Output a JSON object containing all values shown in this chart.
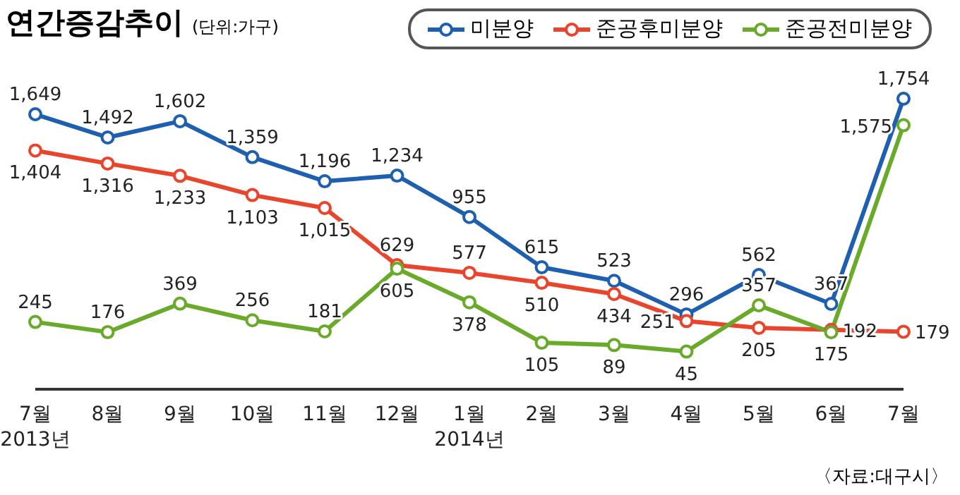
{
  "chart_data": {
    "type": "line",
    "title": "연간증감추이",
    "subtitle": "(단위:가구)",
    "categories": [
      "7월\n2013년",
      "8월",
      "9월",
      "10월",
      "11월",
      "12월",
      "1월\n2014년",
      "2월",
      "3월",
      "4월",
      "5월",
      "6월",
      "7월"
    ],
    "series": [
      {
        "name": "미분양",
        "color": "#1f5fb0",
        "values": [
          1649,
          1492,
          1602,
          1359,
          1196,
          1234,
          955,
          615,
          523,
          296,
          562,
          367,
          1754
        ],
        "value_labels": [
          "1,649",
          "1,492",
          "1,602",
          "1,359",
          "1,196",
          "1,234",
          "955",
          "615",
          "523",
          "296",
          "562",
          "367",
          "1,754"
        ]
      },
      {
        "name": "준공후미분양",
        "color": "#e8452c",
        "values": [
          1404,
          1316,
          1233,
          1103,
          1015,
          629,
          577,
          510,
          434,
          251,
          205,
          192,
          179
        ],
        "value_labels": [
          "1,404",
          "1,316",
          "1,233",
          "1,103",
          "1,015",
          "629",
          "577",
          "510",
          "434",
          "251",
          "205",
          "192",
          "179"
        ]
      },
      {
        "name": "준공전미분양",
        "color": "#6aaa2a",
        "values": [
          245,
          176,
          369,
          256,
          181,
          605,
          378,
          105,
          89,
          45,
          357,
          175,
          1575
        ],
        "value_labels": [
          "245",
          "176",
          "369",
          "256",
          "181",
          "605",
          "378",
          "105",
          "89",
          "45",
          "357",
          "175",
          "1,575"
        ]
      }
    ],
    "marker": "circle",
    "line_style": "solid",
    "legend": "top right",
    "grid": false,
    "annotations": [
      "〈자료:대구시〉"
    ]
  }
}
